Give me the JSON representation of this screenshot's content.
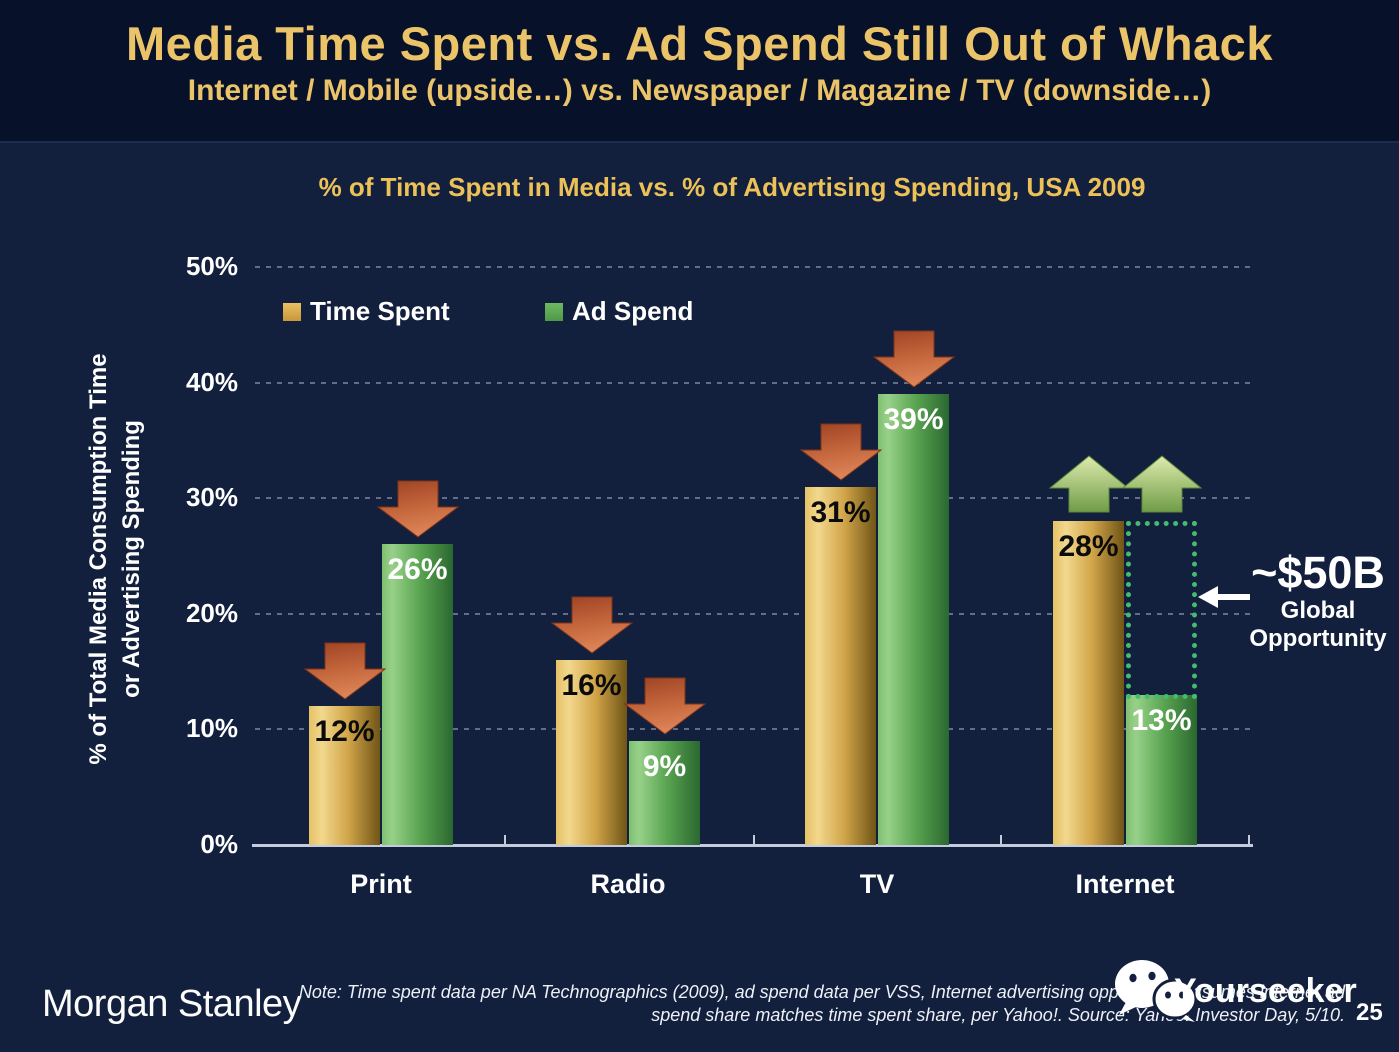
{
  "header": {
    "title": "Media Time Spent vs. Ad Spend Still Out of Whack",
    "subtitle": "Internet / Mobile (upside…) vs. Newspaper / Magazine / TV (downside…)"
  },
  "chart_data": {
    "type": "bar",
    "title": "% of Time Spent in Media vs. % of Advertising Spending, USA 2009",
    "ylabel": [
      "% of Total Media Consumption Time",
      "or Advertising Spending"
    ],
    "categories": [
      "Print",
      "Radio",
      "TV",
      "Internet"
    ],
    "series": [
      {
        "name": "Time Spent",
        "values": [
          12,
          16,
          31,
          28
        ],
        "labels": [
          "12%",
          "16%",
          "31%",
          "28%"
        ],
        "color": "#D9A94A",
        "label_color": "#0B0B0B"
      },
      {
        "name": "Ad Spend",
        "values": [
          26,
          9,
          39,
          13
        ],
        "labels": [
          "26%",
          "9%",
          "39%",
          "13%"
        ],
        "color": "#5FA854",
        "label_color": "#FFFFFF"
      }
    ],
    "ylim": [
      0,
      50
    ],
    "ytick_labels": [
      "0%",
      "10%",
      "20%",
      "30%",
      "40%",
      "50%"
    ],
    "grid": "dotted-horizontal",
    "legend_position": "top-left-inside",
    "arrows": {
      "down_categories": [
        "Print",
        "Radio",
        "TV"
      ],
      "up_categories": [
        "Internet"
      ]
    },
    "annotation": {
      "value": "~$50B",
      "line1": "Global",
      "line2": "Opportunity"
    }
  },
  "footer": {
    "brand": "Morgan Stanley",
    "note_line1": "Note: Time spent data per NA Technographics (2009), ad spend data per VSS, Internet advertising opportunity assumes internet ad",
    "note_line2": "spend share matches time spent share, per Yahoo!. Source: Yahoo! Investor Day, 5/10.",
    "watermark": "Yourseeker",
    "page_number": "25"
  },
  "colors": {
    "header_bg": "#071129",
    "body_bg": "#12203E",
    "title_gold": "#EBC368",
    "bar_gold": "#D9A94A",
    "bar_green": "#5FA854",
    "arrow_red": "#C96A42",
    "arrow_green": "#A5C873",
    "dotted_green": "#43BC6E",
    "axis_line": "#C3CBDC",
    "text_white": "#FFFFFF"
  }
}
